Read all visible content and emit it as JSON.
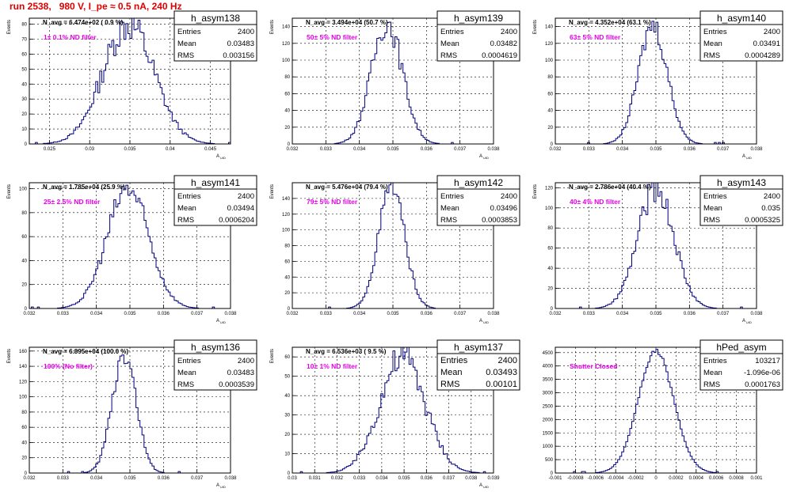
{
  "run_title": "run 2538,   980 V, I_pe ≈ 0.5 nA, 240 Hz",
  "colors": {
    "hist_line": "#00007f",
    "annotation": "#e600e6",
    "run_title": "#e00000",
    "grid": "#000000"
  },
  "stats_labels": {
    "entries": "Entries",
    "mean": "Mean",
    "rms": "RMS"
  },
  "chart_data": [
    {
      "type": "histogram",
      "hist_name": "h_asym138",
      "n_avg": "N_avg = 6.474e+02 ( 0.9 %)",
      "filter": "1± 0.1% ND filter",
      "entries": "2400",
      "mean": "0.03483",
      "rms": "0.003156",
      "ylabel": "Events",
      "xlabel": "A",
      "xlim": [
        0.0225,
        0.0475
      ],
      "ylim": [
        0,
        84
      ],
      "xticks": [
        0.025,
        0.03,
        0.035,
        0.04,
        0.045
      ],
      "xtick_labels": [
        "0.025",
        "0.03",
        "0.035",
        "0.04",
        "0.045"
      ],
      "yticks": [
        0,
        10,
        20,
        30,
        40,
        50,
        60,
        70,
        80
      ],
      "ytick_labels": [
        "0",
        "10",
        "20",
        "30",
        "40",
        "50",
        "60",
        "70",
        "80"
      ],
      "shape": {
        "mu": 0.03483,
        "sigma": 0.003156,
        "peak": 80,
        "noise": 0.15
      }
    },
    {
      "type": "histogram",
      "hist_name": "h_asym139",
      "n_avg": "N_avg = 3.494e+04 (50.7 %)",
      "filter": "50± 5% ND filter",
      "entries": "2400",
      "mean": "0.03482",
      "rms": "0.0004619",
      "ylabel": "Events",
      "xlabel": "A",
      "xlim": [
        0.032,
        0.038
      ],
      "ylim": [
        0,
        150
      ],
      "xticks": [
        0.032,
        0.033,
        0.034,
        0.035,
        0.036,
        0.037,
        0.038
      ],
      "xtick_labels": [
        "0.032",
        "0.033",
        "0.034",
        "0.035",
        "0.036",
        "0.037",
        "0.038"
      ],
      "yticks": [
        0,
        20,
        40,
        60,
        80,
        100,
        120,
        140
      ],
      "ytick_labels": [
        "0",
        "20",
        "40",
        "60",
        "80",
        "100",
        "120",
        "140"
      ],
      "shape": {
        "mu": 0.03482,
        "sigma": 0.0004619,
        "peak": 145,
        "noise": 0.12
      }
    },
    {
      "type": "histogram",
      "hist_name": "h_asym140",
      "n_avg": "N_avg = 4.352e+04 (63.1 %)",
      "filter": "63± 5% ND filter",
      "entries": "2400",
      "mean": "0.03491",
      "rms": "0.0004289",
      "ylabel": "Events",
      "xlabel": "A",
      "xlim": [
        0.032,
        0.038
      ],
      "ylim": [
        0,
        150
      ],
      "xticks": [
        0.032,
        0.033,
        0.034,
        0.035,
        0.036,
        0.037,
        0.038
      ],
      "xtick_labels": [
        "0.032",
        "0.033",
        "0.034",
        "0.035",
        "0.036",
        "0.037",
        "0.038"
      ],
      "yticks": [
        0,
        20,
        40,
        60,
        80,
        100,
        120,
        140
      ],
      "ytick_labels": [
        "0",
        "20",
        "40",
        "60",
        "80",
        "100",
        "120",
        "140"
      ],
      "shape": {
        "mu": 0.03491,
        "sigma": 0.0004289,
        "peak": 142,
        "noise": 0.1
      }
    },
    {
      "type": "histogram",
      "hist_name": "h_asym141",
      "n_avg": "N_avg = 1.785e+04 (25.9 %)",
      "filter": "25± 2.5% ND filter",
      "entries": "2400",
      "mean": "0.03494",
      "rms": "0.0006204",
      "ylabel": "Events",
      "xlabel": "A",
      "xlim": [
        0.032,
        0.038
      ],
      "ylim": [
        0,
        105
      ],
      "xticks": [
        0.032,
        0.033,
        0.034,
        0.035,
        0.036,
        0.037,
        0.038
      ],
      "xtick_labels": [
        "0.032",
        "0.033",
        "0.034",
        "0.035",
        "0.036",
        "0.037",
        "0.038"
      ],
      "yticks": [
        0,
        20,
        40,
        60,
        80,
        100
      ],
      "ytick_labels": [
        "0",
        "20",
        "40",
        "60",
        "80",
        "100"
      ],
      "shape": {
        "mu": 0.03494,
        "sigma": 0.0006204,
        "peak": 100,
        "noise": 0.12
      }
    },
    {
      "type": "histogram",
      "hist_name": "h_asym142",
      "n_avg": "N_avg = 5.476e+04 (79.4 %)",
      "filter": "79± 5% ND filter",
      "entries": "2400",
      "mean": "0.03496",
      "rms": "0.0003853",
      "ylabel": "Events",
      "xlabel": "A",
      "xlim": [
        0.032,
        0.038
      ],
      "ylim": [
        0,
        160
      ],
      "xticks": [
        0.032,
        0.033,
        0.034,
        0.035,
        0.036,
        0.037,
        0.038
      ],
      "xtick_labels": [
        "0.032",
        "0.033",
        "0.034",
        "0.035",
        "0.036",
        "0.037",
        "0.038"
      ],
      "yticks": [
        0,
        20,
        40,
        60,
        80,
        100,
        120,
        140
      ],
      "ytick_labels": [
        "0",
        "20",
        "40",
        "60",
        "80",
        "100",
        "120",
        "140"
      ],
      "shape": {
        "mu": 0.03496,
        "sigma": 0.0003853,
        "peak": 155,
        "noise": 0.1
      }
    },
    {
      "type": "histogram",
      "hist_name": "h_asym143",
      "n_avg": "N_avg = 2.786e+04 (40.4 %)",
      "filter": "40± 4% ND filter",
      "entries": "2400",
      "mean": "0.035",
      "rms": "0.0005325",
      "ylabel": "Events",
      "xlabel": "A",
      "xlim": [
        0.032,
        0.038
      ],
      "ylim": [
        0,
        125
      ],
      "xticks": [
        0.032,
        0.033,
        0.034,
        0.035,
        0.036,
        0.037,
        0.038
      ],
      "xtick_labels": [
        "0.032",
        "0.033",
        "0.034",
        "0.035",
        "0.036",
        "0.037",
        "0.038"
      ],
      "yticks": [
        0,
        20,
        40,
        60,
        80,
        100,
        120
      ],
      "ytick_labels": [
        "0",
        "20",
        "40",
        "60",
        "80",
        "100",
        "120"
      ],
      "shape": {
        "mu": 0.035,
        "sigma": 0.0005325,
        "peak": 120,
        "noise": 0.12
      }
    },
    {
      "type": "histogram",
      "hist_name": "h_asym136",
      "n_avg": "N_avg = 6.895e+04 (100.0 %)",
      "filter": "100% (No filter)",
      "entries": "2400",
      "mean": "0.03483",
      "rms": "0.0003539",
      "ylabel": "Events",
      "xlabel": "A",
      "xlim": [
        0.032,
        0.038
      ],
      "ylim": [
        0,
        165
      ],
      "xticks": [
        0.032,
        0.033,
        0.034,
        0.035,
        0.036,
        0.037,
        0.038
      ],
      "xtick_labels": [
        "0.032",
        "0.033",
        "0.034",
        "0.035",
        "0.036",
        "0.037",
        "0.038"
      ],
      "yticks": [
        0,
        20,
        40,
        60,
        80,
        100,
        120,
        140,
        160
      ],
      "ytick_labels": [
        "0",
        "20",
        "40",
        "60",
        "80",
        "100",
        "120",
        "140",
        "160"
      ],
      "shape": {
        "mu": 0.03483,
        "sigma": 0.0003539,
        "peak": 160,
        "noise": 0.12
      }
    },
    {
      "type": "histogram",
      "hist_name": "h_asym137",
      "n_avg": "N_avg = 6.536e+03 ( 9.5 %)",
      "filter": "10± 1% ND filter",
      "entries": "2400",
      "mean": "0.03493",
      "rms": "0.00101",
      "ylabel": "Events",
      "xlabel": "A",
      "xlim": [
        0.03,
        0.039
      ],
      "ylim": [
        0,
        65
      ],
      "xticks": [
        0.03,
        0.031,
        0.032,
        0.033,
        0.034,
        0.035,
        0.036,
        0.037,
        0.038,
        0.039
      ],
      "xtick_labels": [
        "0.03",
        "0.031",
        "0.032",
        "0.033",
        "0.034",
        "0.035",
        "0.036",
        "0.037",
        "0.038",
        "0.039"
      ],
      "yticks": [
        0,
        10,
        20,
        30,
        40,
        50,
        60
      ],
      "ytick_labels": [
        "0",
        "10",
        "20",
        "30",
        "40",
        "50",
        "60"
      ],
      "shape": {
        "mu": 0.03493,
        "sigma": 0.00101,
        "peak": 60,
        "noise": 0.15
      }
    },
    {
      "type": "histogram",
      "hist_name": "hPed_asym",
      "n_avg": "",
      "filter": "Shutter Closed",
      "entries": "103217",
      "mean": "-1.096e-06",
      "rms": "0.0001763",
      "ylabel": "",
      "xlabel": "",
      "xlim": [
        -0.001,
        0.001
      ],
      "ylim": [
        0,
        4700
      ],
      "xticks": [
        -0.001,
        -0.0008,
        -0.0006,
        -0.0004,
        -0.0002,
        0,
        0.0002,
        0.0004,
        0.0006,
        0.0008,
        0.001
      ],
      "xtick_labels": [
        "-0.001",
        "-0.0008",
        "-0.0006",
        "-0.0004",
        "-0.0002",
        "0",
        "0.0002",
        "0.0004",
        "0.0006",
        "0.0008",
        "0.001"
      ],
      "yticks": [
        0,
        500,
        1000,
        1500,
        2000,
        2500,
        3000,
        3500,
        4000,
        4500
      ],
      "ytick_labels": [
        "0",
        "500",
        "1000",
        "1500",
        "2000",
        "2500",
        "3000",
        "3500",
        "4000",
        "4500"
      ],
      "shape": {
        "mu": 0,
        "sigma": 0.0001763,
        "peak": 4550,
        "noise": 0.02
      }
    }
  ]
}
